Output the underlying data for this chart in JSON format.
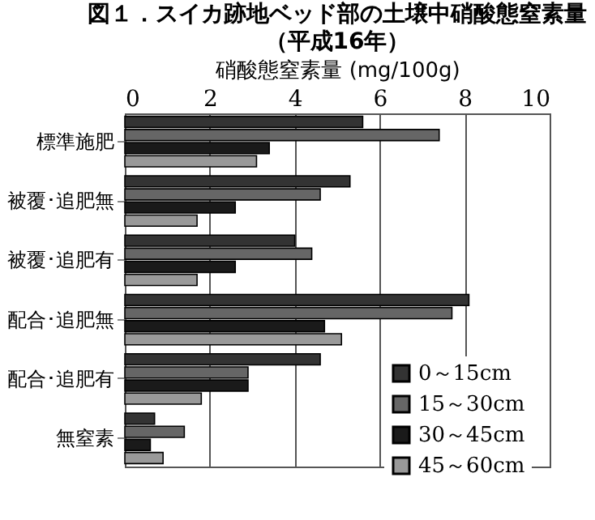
{
  "chart_data": {
    "type": "bar",
    "orientation": "horizontal",
    "title": "図１．スイカ跡地ベッド部の土壌中硝酸態窒素量",
    "subtitle": "（平成16年）",
    "xlabel": "硝酸態窒素量 (mg/100g)",
    "categories": [
      "標準施肥",
      "被覆･追肥無",
      "被覆･追肥有",
      "配合･追肥無",
      "配合･追肥有",
      "無窒素"
    ],
    "series": [
      {
        "name": "0～15cm",
        "color": "#333333",
        "values": [
          5.6,
          5.3,
          4.0,
          8.1,
          4.6,
          0.7
        ]
      },
      {
        "name": "15～30cm",
        "color": "#666666",
        "values": [
          7.4,
          4.6,
          4.4,
          7.7,
          2.9,
          1.4
        ]
      },
      {
        "name": "30～45cm",
        "color": "#1a1a1a",
        "values": [
          3.4,
          2.6,
          2.6,
          4.7,
          2.9,
          0.6
        ]
      },
      {
        "name": "45～60cm",
        "color": "#999999",
        "values": [
          3.1,
          1.7,
          1.7,
          5.1,
          1.8,
          0.9
        ]
      }
    ],
    "xlim": [
      0,
      10
    ],
    "xticks": [
      0,
      2,
      4,
      6,
      8,
      10
    ],
    "grid": "x",
    "legend": "bottom right"
  }
}
